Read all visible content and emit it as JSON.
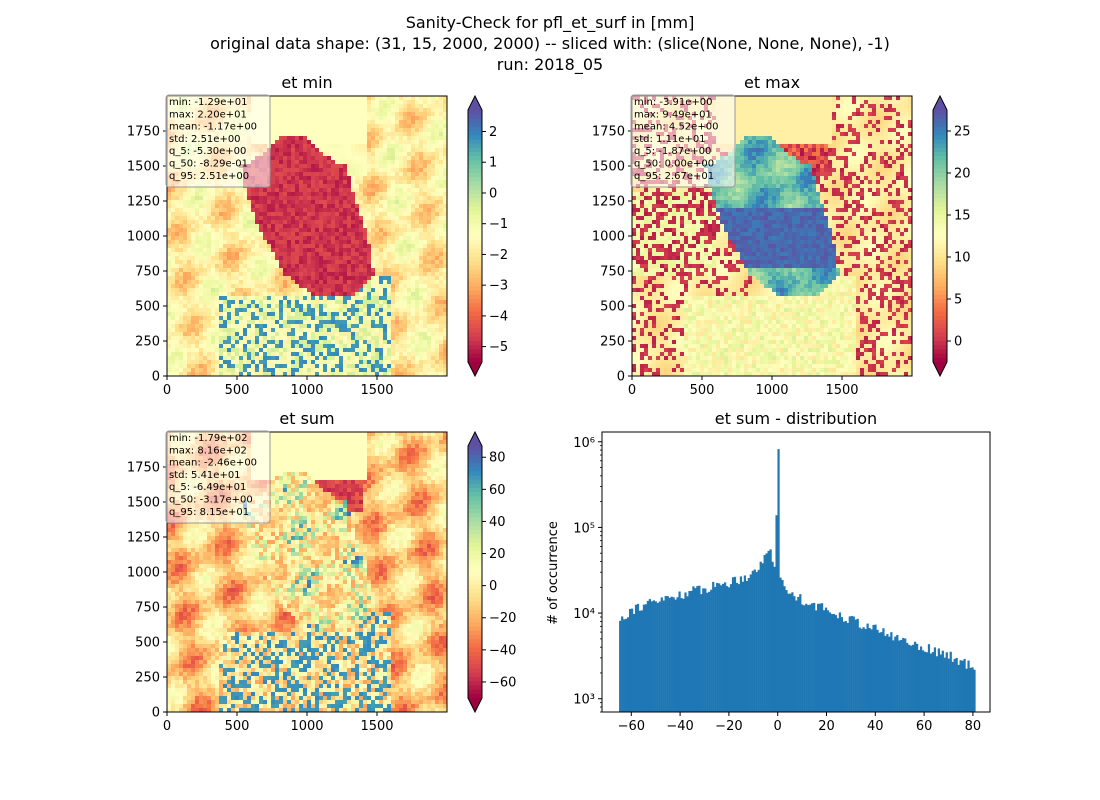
{
  "suptitle": {
    "line1": "Sanity-Check for pfl_et_surf in [mm]",
    "line2": "original data shape: (31, 15, 2000, 2000) -- sliced with: (slice(None, None, None), -1)",
    "line3": "run: 2018_05"
  },
  "colors": {
    "hist_bar": "#1f77b4",
    "spectral": [
      "#9e0142",
      "#d53e4f",
      "#f46d43",
      "#fdae61",
      "#fee08b",
      "#ffffbf",
      "#e6f598",
      "#abdda4",
      "#66c2a5",
      "#3288bd",
      "#5e4fa2"
    ]
  },
  "chart_data": [
    {
      "type": "heatmap",
      "title": "et min",
      "colormap": "Spectral",
      "xlim": [
        0,
        2000
      ],
      "ylim": [
        0,
        2000
      ],
      "xticks": [
        "0",
        "500",
        "1000",
        "1500"
      ],
      "yticks": [
        "0",
        "250",
        "500",
        "750",
        "1000",
        "1250",
        "1500",
        "1750"
      ],
      "colorbar": {
        "min": -5.5,
        "max": 2.7,
        "ticks": [
          "2",
          "1",
          "0",
          "−1",
          "−2",
          "−3",
          "−4",
          "−5"
        ],
        "tick_values": [
          2,
          1,
          0,
          -1,
          -2,
          -3,
          -4,
          -5
        ]
      },
      "stats": [
        "min: -1.29e+01",
        "max: 2.20e+01",
        "mean: -1.17e+00",
        "std: 2.51e+00",
        "q_5: -5.30e+00",
        "q_50: -8.29e-01",
        "q_95: 2.51e+00"
      ]
    },
    {
      "type": "heatmap",
      "title": "et max",
      "colormap": "Spectral",
      "xlim": [
        0,
        2000
      ],
      "ylim": [
        0,
        2000
      ],
      "xticks": [
        "0",
        "500",
        "1000",
        "1500"
      ],
      "yticks": [
        "0",
        "250",
        "500",
        "750",
        "1000",
        "1250",
        "1500",
        "1750"
      ],
      "colorbar": {
        "min": -2.5,
        "max": 27.5,
        "ticks": [
          "25",
          "20",
          "15",
          "10",
          "5",
          "0"
        ],
        "tick_values": [
          25,
          20,
          15,
          10,
          5,
          0
        ]
      },
      "stats": [
        "min: -3.91e+00",
        "max: 9.49e+01",
        "mean: 4.52e+00",
        "std: 1.11e+01",
        "q_5: -1.87e+00",
        "q_50: 0.00e+00",
        "q_95: 2.67e+01"
      ]
    },
    {
      "type": "heatmap",
      "title": "et sum",
      "colormap": "Spectral",
      "xlim": [
        0,
        2000
      ],
      "ylim": [
        0,
        2000
      ],
      "xticks": [
        "0",
        "500",
        "1000",
        "1500"
      ],
      "yticks": [
        "0",
        "250",
        "500",
        "750",
        "1000",
        "1250",
        "1500",
        "1750"
      ],
      "colorbar": {
        "min": -70,
        "max": 87,
        "ticks": [
          "80",
          "60",
          "40",
          "20",
          "0",
          "−20",
          "−40",
          "−60"
        ],
        "tick_values": [
          80,
          60,
          40,
          20,
          0,
          -20,
          -40,
          -60
        ]
      },
      "stats": [
        "min: -1.79e+02",
        "max: 8.16e+02",
        "mean: -2.46e+00",
        "std: 5.41e+01",
        "q_5: -6.49e+01",
        "q_50: -3.17e+00",
        "q_95: 8.15e+01"
      ]
    },
    {
      "type": "bar",
      "title": "et sum - distribution",
      "ylabel": "# of occurrence",
      "yscale": "log",
      "xlim": [
        -72,
        87
      ],
      "ylim": [
        700,
        1300000
      ],
      "xticks": [
        "−60",
        "−40",
        "−20",
        "0",
        "20",
        "40",
        "60",
        "80"
      ],
      "xtick_values": [
        -60,
        -40,
        -20,
        0,
        20,
        40,
        60,
        80
      ],
      "yticks": [
        "10³",
        "10⁴",
        "10⁵",
        "10⁶"
      ],
      "ytick_values": [
        1000,
        10000,
        100000,
        1000000
      ],
      "bin_range": [
        -65,
        81
      ],
      "profile": [
        {
          "x": -65,
          "y": 8500
        },
        {
          "x": -60,
          "y": 11000
        },
        {
          "x": -55,
          "y": 12500
        },
        {
          "x": -50,
          "y": 13500
        },
        {
          "x": -45,
          "y": 15000
        },
        {
          "x": -40,
          "y": 16500
        },
        {
          "x": -35,
          "y": 18000
        },
        {
          "x": -30,
          "y": 19500
        },
        {
          "x": -25,
          "y": 21000
        },
        {
          "x": -20,
          "y": 23000
        },
        {
          "x": -15,
          "y": 25500
        },
        {
          "x": -10,
          "y": 30000
        },
        {
          "x": -6,
          "y": 40000
        },
        {
          "x": -3,
          "y": 60000
        },
        {
          "x": -1,
          "y": 30000
        },
        {
          "x": 0,
          "y": 820000
        },
        {
          "x": 1,
          "y": 25000
        },
        {
          "x": 3,
          "y": 19000
        },
        {
          "x": 8,
          "y": 15500
        },
        {
          "x": 15,
          "y": 12500
        },
        {
          "x": 20,
          "y": 11000
        },
        {
          "x": 30,
          "y": 8500
        },
        {
          "x": 40,
          "y": 6500
        },
        {
          "x": 50,
          "y": 5000
        },
        {
          "x": 60,
          "y": 4000
        },
        {
          "x": 70,
          "y": 3200
        },
        {
          "x": 78,
          "y": 2500
        },
        {
          "x": 81,
          "y": 2000
        }
      ]
    }
  ]
}
